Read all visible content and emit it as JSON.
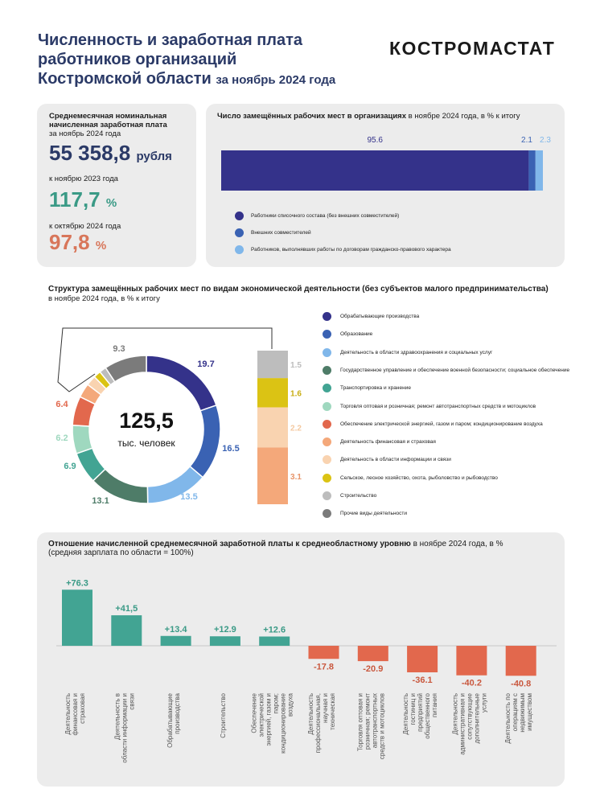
{
  "header": {
    "title_line1": "Численность и заработная плата",
    "title_line2": "работников организаций",
    "title_line3": "Костромской области",
    "title_period": "за ноябрь 2024 года",
    "brand": "КОСТРОМАСТАТ"
  },
  "salary": {
    "title": "Среднемесячная номинальная начисленная заработная плата",
    "subtitle": "за ноябрь 2024 года",
    "value": "55 358,8",
    "unit": "рубля",
    "label_prev_year": "к ноябрю 2023 года",
    "prev_year_value": "117,7",
    "label_prev_month": "к октябрю 2024 года",
    "prev_month_value": "97,8",
    "pct_sign": "%"
  },
  "colors": {
    "navy": "#34328a",
    "blue": "#3a62b3",
    "light_blue": "#80b7ea",
    "teal_dark": "#4e7c68",
    "teal": "#42a493",
    "mint": "#9fd8bf",
    "orange_red": "#e2684d",
    "orange": "#f4a87a",
    "peach": "#f9d3b0",
    "yellow": "#dbc314",
    "grey_light": "#bdbdbd",
    "grey": "#7b7b7b",
    "green_text": "#3a9a86",
    "orange_text": "#d8765a"
  },
  "jobs": {
    "title_bold": "Число замещённых рабочих мест в организациях",
    "title_rest": "в ноябре 2024 года, в %  к итогу",
    "segments": [
      {
        "label": "Работники списочного состава (без внешних совместителей)",
        "value": 95.6,
        "color": "#34328a"
      },
      {
        "label": "Внешних совместителей",
        "value": 2.1,
        "color": "#3a62b3"
      },
      {
        "label": "Работников, выполнявших работы по договорам гражданско-правового характера",
        "value": 2.3,
        "color": "#80b7ea"
      }
    ]
  },
  "structure": {
    "title": "Структура  замещённых рабочих мест по видам экономической деятельности (без субъектов малого предпринимательства)",
    "subtitle": "в ноябре 2024 года, в % к итогу",
    "center_value": "125,5",
    "center_unit": "тыс. человек"
  },
  "ratio": {
    "title_bold": "Отношение начисленной среднемесячной заработной платы к среднеобластному уровню",
    "title_rest": "в ноябре 2024 года, в %",
    "subtitle": "(средняя зарплата по области = 100%)"
  },
  "chart_data": [
    {
      "type": "bar",
      "orientation": "horizontal-stacked",
      "categories": [
        "Работники списочного состава (без внешних совместителей)",
        "Внешних совместителей",
        "Работников, выполнявших работы по договорам гражданско-правового характера"
      ],
      "values": [
        95.6,
        2.1,
        2.3
      ],
      "data_labels": [
        "95.6",
        "2.1",
        "2.3"
      ]
    },
    {
      "type": "pie",
      "variant": "donut",
      "categories": [
        "Обрабатывающие производства",
        "Образование",
        "Деятельность в области здравоохранения и социальных услуг",
        "Государственное управление и обеспечение военной безопасности; социальное обеспечение",
        "Транспортировка и хранение",
        "Торговля оптовая и розничная; ремонт автотранспортных средств и мотоциклов",
        "Обеспечение электрической энергией, газом и паром; кондиционирование воздуха",
        "Деятельность финансовая и страховая",
        "Деятельность в области информации и связи",
        "Сельское, лесное хозяйство, охота, рыболовство и рыбоводство",
        "Строительство",
        "Прочие виды деятельности"
      ],
      "values": [
        19.7,
        16.5,
        13.5,
        13.1,
        6.9,
        6.2,
        6.4,
        3.1,
        2.2,
        1.6,
        1.5,
        9.3
      ],
      "data_labels": [
        "19.7",
        "16.5",
        "13.5",
        "13.1",
        "6.9",
        "6.2",
        "6.4",
        "",
        "",
        "",
        "",
        "9.3"
      ],
      "colors": [
        "#34328a",
        "#3a62b3",
        "#80b7ea",
        "#4e7c68",
        "#42a493",
        "#9fd8bf",
        "#e2684d",
        "#f4a87a",
        "#f9d3b0",
        "#dbc314",
        "#bdbdbd",
        "#7b7b7b"
      ]
    },
    {
      "type": "bar",
      "orientation": "vertical-stacked",
      "categories": [
        "Деятельность финансовая и страховая",
        "Деятельность в области информации и связи",
        "Сельское, лесное хозяйство, охота, рыболовство и рыбоводство",
        "Строительство"
      ],
      "values": [
        3.1,
        2.2,
        1.6,
        1.5
      ],
      "data_labels": [
        "3.1",
        "2.2",
        "1.6",
        "1.5"
      ],
      "colors": [
        "#f4a87a",
        "#f9d3b0",
        "#dbc314",
        "#bdbdbd"
      ]
    },
    {
      "type": "bar",
      "categories": [
        "Деятельность финансовая и страховая",
        "Деятельность в области информации и связи",
        "Обрабатывающие производства",
        "Строительство",
        "Обеспечение электрической энергией, газом и паром; кондиционирование воздуха",
        "Деятельность профессиональная, научная и техническая",
        "Торговля оптовая и розничная; ремонт автотранспортных средств и мотоциклов",
        "Деятельность гостиниц и предприятий общественного питания",
        "Деятельность административная и сопутствующие дополнительные услуги",
        "Деятельность по операциям с недвижимым имуществом"
      ],
      "values": [
        76.3,
        41.5,
        13.4,
        12.9,
        12.6,
        -17.8,
        -20.9,
        -36.1,
        -40.2,
        -40.8
      ],
      "data_labels": [
        "+76.3",
        "+41,5",
        "+13.4",
        "+12.9",
        "+12.6",
        "-17.8",
        "-20.9",
        "-36.1",
        "-40.2",
        "-40.8"
      ],
      "positive_color": "#42a493",
      "negative_color": "#e2684d"
    }
  ]
}
